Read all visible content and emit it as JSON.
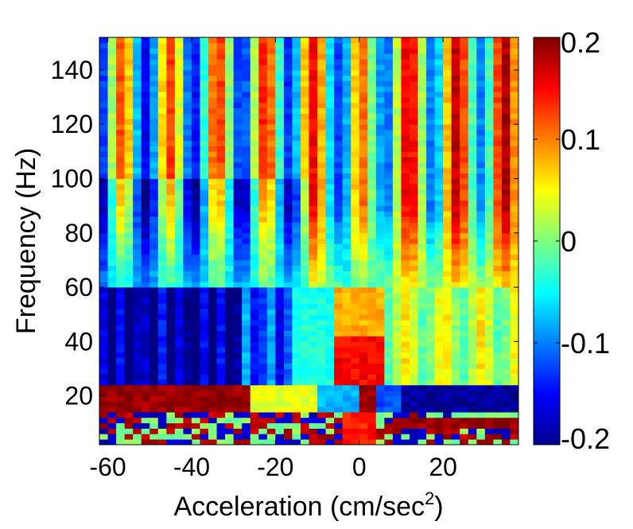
{
  "chart_data": {
    "type": "heatmap",
    "title": "",
    "xlabel": "Acceleration (cm/sec",
    "xlabel_superscript": "2",
    "xlabel_suffix": ")",
    "ylabel": "Frequency (Hz)",
    "xlim": [
      -62,
      38
    ],
    "ylim": [
      2,
      152
    ],
    "x_ticks": [
      -60,
      -40,
      -20,
      0,
      20
    ],
    "x_tick_labels": [
      "-60",
      "-40",
      "-20",
      "0",
      "20"
    ],
    "y_ticks": [
      20,
      40,
      60,
      80,
      100,
      120,
      140
    ],
    "y_tick_labels": [
      "20",
      "40",
      "60",
      "80",
      "100",
      "120",
      "140"
    ],
    "colorbar": {
      "colormap": "jet",
      "range": [
        -0.2,
        0.2
      ],
      "ticks": [
        0.2,
        0.1,
        0,
        -0.1,
        -0.2
      ],
      "tick_labels": [
        "0.2",
        "0.1",
        "0",
        "-0.1",
        "-0.2"
      ]
    },
    "grid": {
      "x_start": -62,
      "x_step": 2,
      "ncols": 50,
      "y_start": 2,
      "y_step": 2,
      "nrows": 75
    },
    "colormap_colors": [
      "#00008f",
      "#0000ff",
      "#00ffff",
      "#ffff00",
      "#ff0000",
      "#800000"
    ]
  }
}
